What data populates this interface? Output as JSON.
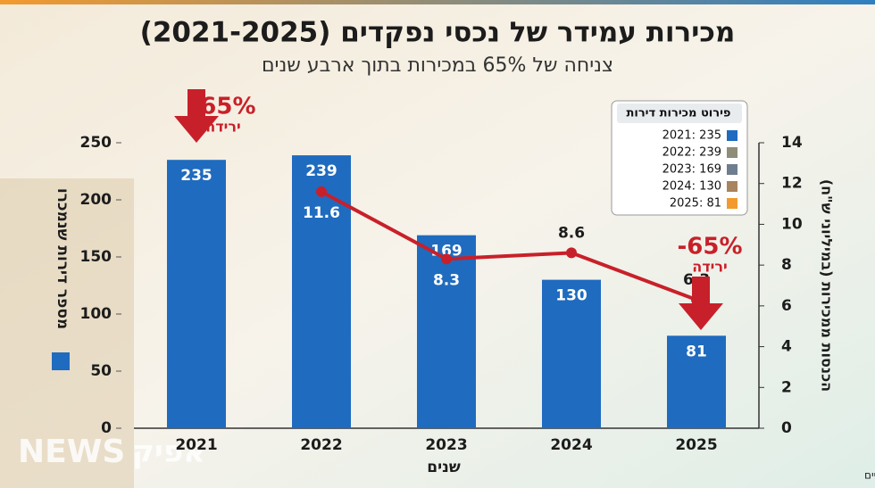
{
  "title": "מכירות עמידר של נכסי נפקדים (2021-2025)",
  "subtitle": "צניחה של 65% במכירות בתוך ארבע שנים",
  "footnote": "*הנתונים מבוססים על הבקשה ואינם מחויבים לפרסומים רשמיים",
  "logo": {
    "latin": "NEWS",
    "hebrew": "אפיק"
  },
  "chart_data": {
    "type": "bar",
    "y_label": "מספר דירות שנמכרו",
    "y2_label": "הכנסות ממכירות (במיליוני ש\"ח)",
    "x_label": "שנים",
    "categories": [
      "2021",
      "2022",
      "2023",
      "2024",
      "2025"
    ],
    "series": [
      {
        "type": "bar",
        "color": "#1f6bbf",
        "values": [
          235,
          239,
          169,
          130,
          81
        ]
      },
      {
        "type": "line",
        "axis": "y2",
        "color": "#c8202a",
        "values": [
          null,
          11.6,
          8.3,
          8.6,
          6.3
        ]
      }
    ],
    "ylim": [
      0,
      250
    ],
    "yticks": [
      0,
      50,
      100,
      150,
      200,
      250
    ],
    "y2lim": [
      0,
      14
    ],
    "y2ticks": [
      0,
      2,
      4,
      6,
      8,
      10,
      12,
      14
    ],
    "annotations": [
      {
        "value": "-65%",
        "text": "ירידה"
      },
      {
        "value": "-65%",
        "text": "ירידה"
      }
    ],
    "legend_box": {
      "title": "פירוט מכירות דירות",
      "items": [
        {
          "label": "2021: 235",
          "color": "#1f6bbf"
        },
        {
          "label": "2022: 239",
          "color": "#8f8c78"
        },
        {
          "label": "2023: 169",
          "color": "#6e7e90"
        },
        {
          "label": "2024: 130",
          "color": "#a8845f"
        },
        {
          "label": "2025: 81",
          "color": "#f39a2e"
        }
      ]
    }
  }
}
